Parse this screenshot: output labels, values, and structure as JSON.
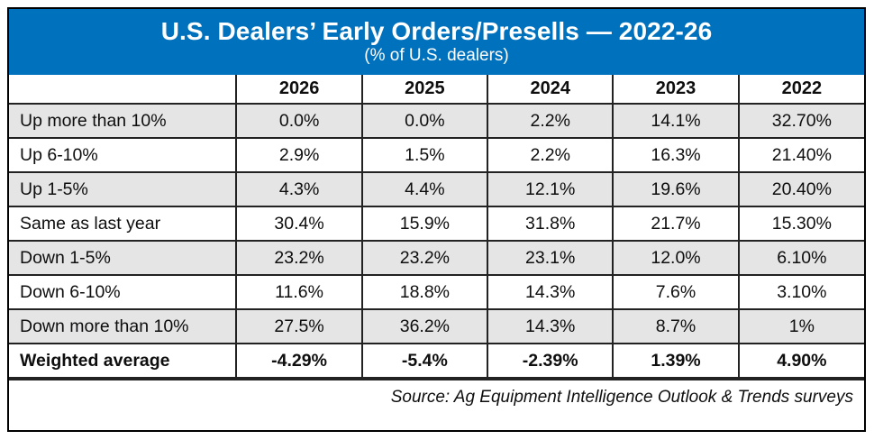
{
  "table": {
    "title": "U.S. Dealers’ Early Orders/Presells — 2022-26",
    "subtitle": "(% of U.S. dealers)",
    "columns": [
      "2026",
      "2025",
      "2024",
      "2023",
      "2022"
    ],
    "rows": [
      {
        "label": "Up more than 10%",
        "values": [
          "0.0%",
          "0.0%",
          "2.2%",
          "14.1%",
          "32.70%"
        ],
        "bold": false
      },
      {
        "label": "Up 6-10%",
        "values": [
          "2.9%",
          "1.5%",
          "2.2%",
          "16.3%",
          "21.40%"
        ],
        "bold": false
      },
      {
        "label": "Up 1-5%",
        "values": [
          "4.3%",
          "4.4%",
          "12.1%",
          "19.6%",
          "20.40%"
        ],
        "bold": false
      },
      {
        "label": "Same as last year",
        "values": [
          "30.4%",
          "15.9%",
          "31.8%",
          "21.7%",
          "15.30%"
        ],
        "bold": false
      },
      {
        "label": "Down 1-5%",
        "values": [
          "23.2%",
          "23.2%",
          "23.1%",
          "12.0%",
          "6.10%"
        ],
        "bold": false
      },
      {
        "label": "Down 6-10%",
        "values": [
          "11.6%",
          "18.8%",
          "14.3%",
          "7.6%",
          "3.10%"
        ],
        "bold": false
      },
      {
        "label": "Down more than 10%",
        "values": [
          "27.5%",
          "36.2%",
          "14.3%",
          "8.7%",
          "1%"
        ],
        "bold": false
      },
      {
        "label": "Weighted average",
        "values": [
          "-4.29%",
          "-5.4%",
          "-2.39%",
          "1.39%",
          "4.90%"
        ],
        "bold": true
      }
    ],
    "source": "Source: Ag Equipment Intelligence Outlook & Trends surveys",
    "colors": {
      "header_bg": "#0071BC",
      "header_text": "#ffffff",
      "alt_row_bg": "#e5e5e6",
      "grid": "#222222",
      "frame": "#000000"
    }
  },
  "chart_data": {
    "type": "table",
    "title": "U.S. Dealers’ Early Orders/Presells — 2022-26",
    "subtitle": "(% of U.S. dealers)",
    "categories": [
      "Up more than 10%",
      "Up 6-10%",
      "Up 1-5%",
      "Same as last year",
      "Down 1-5%",
      "Down 6-10%",
      "Down more than 10%",
      "Weighted average"
    ],
    "series": [
      {
        "name": "2026",
        "values": [
          0.0,
          2.9,
          4.3,
          30.4,
          23.2,
          11.6,
          27.5,
          -4.29
        ]
      },
      {
        "name": "2025",
        "values": [
          0.0,
          1.5,
          4.4,
          15.9,
          23.2,
          18.8,
          36.2,
          -5.4
        ]
      },
      {
        "name": "2024",
        "values": [
          2.2,
          2.2,
          12.1,
          31.8,
          23.1,
          14.3,
          14.3,
          -2.39
        ]
      },
      {
        "name": "2023",
        "values": [
          14.1,
          16.3,
          19.6,
          21.7,
          12.0,
          7.6,
          8.7,
          1.39
        ]
      },
      {
        "name": "2022",
        "values": [
          32.7,
          21.4,
          20.4,
          15.3,
          6.1,
          3.1,
          1.0,
          4.9
        ]
      }
    ],
    "units": "percent of U.S. dealers",
    "source": "Source: Ag Equipment Intelligence Outlook & Trends surveys"
  }
}
